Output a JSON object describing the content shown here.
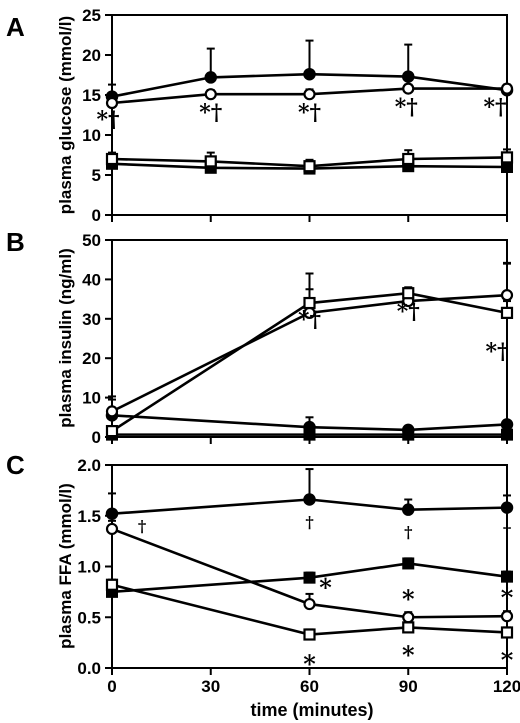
{
  "chart_data": [
    {
      "type": "line",
      "panel": "A",
      "ylabel": "plasma glucose (mmol/l)",
      "xlabel": "",
      "xlim": [
        0,
        120
      ],
      "ylim": [
        0,
        25
      ],
      "yticks": [
        0,
        5,
        10,
        15,
        20,
        25
      ],
      "x": [
        0,
        30,
        60,
        90,
        120
      ],
      "series": [
        {
          "marker": "filled-circle",
          "values": [
            14.8,
            17.2,
            17.6,
            17.3,
            15.6
          ],
          "errors": [
            1.5,
            3.6,
            4.2,
            4.0,
            0.5
          ]
        },
        {
          "marker": "open-circle",
          "values": [
            14.0,
            15.1,
            15.1,
            15.8,
            15.8
          ],
          "errors": [
            0.5,
            0.5,
            0.6,
            0.5,
            0.5
          ]
        },
        {
          "marker": "filled-square",
          "values": [
            6.4,
            5.9,
            5.8,
            6.1,
            6.0
          ],
          "errors": [
            1.0,
            1.3,
            1.0,
            1.2,
            1.1
          ]
        },
        {
          "marker": "open-square",
          "values": [
            7.0,
            6.7,
            6.1,
            7.0,
            7.2
          ],
          "errors": [
            0.8,
            1.1,
            0.8,
            1.1,
            1.0
          ]
        }
      ],
      "annotations": [
        {
          "x": 0,
          "text": "*†"
        },
        {
          "x": 30,
          "text": "*†"
        },
        {
          "x": 60,
          "text": "*†"
        },
        {
          "x": 90,
          "text": "*†"
        },
        {
          "x": 120,
          "text": "*†"
        }
      ]
    },
    {
      "type": "line",
      "panel": "B",
      "ylabel": "plasma insulin (ng/ml)",
      "xlabel": "",
      "xlim": [
        0,
        120
      ],
      "ylim": [
        0,
        50
      ],
      "yticks": [
        0,
        10,
        20,
        30,
        40,
        50
      ],
      "x": [
        0,
        60,
        90,
        120
      ],
      "series": [
        {
          "marker": "filled-circle",
          "values": [
            5.5,
            2.5,
            1.8,
            3.2
          ],
          "errors": [
            4.8,
            2.5,
            0.8,
            41.0
          ]
        },
        {
          "marker": "open-circle",
          "values": [
            6.5,
            31.5,
            34.5,
            36.0
          ],
          "errors": [
            3.0,
            6.0,
            1.5,
            8.0
          ]
        },
        {
          "marker": "filled-square",
          "values": [
            0.6,
            0.6,
            0.6,
            0.6
          ],
          "errors": [
            0.3,
            0.3,
            0.3,
            0.3
          ]
        },
        {
          "marker": "open-square",
          "values": [
            1.5,
            34.0,
            36.5,
            31.5
          ],
          "errors": [
            1.0,
            7.5,
            1.5,
            3.0
          ]
        }
      ],
      "annotations": [
        {
          "x": 60,
          "text": "*†"
        },
        {
          "x": 90,
          "text": "*†"
        },
        {
          "x": 120,
          "text": "*†"
        }
      ]
    },
    {
      "type": "line",
      "panel": "C",
      "ylabel": "plasma FFA (mmol/l)",
      "xlabel": "time (minutes)",
      "xlim": [
        0,
        120
      ],
      "ylim": [
        0,
        2.0
      ],
      "yticks": [
        "0.0",
        "0.5",
        "1.0",
        "1.5",
        "2.0"
      ],
      "xticks": [
        "0",
        "30",
        "60",
        "90",
        "120"
      ],
      "x": [
        0,
        60,
        90,
        120
      ],
      "series": [
        {
          "marker": "filled-circle",
          "values": [
            1.52,
            1.66,
            1.56,
            1.58
          ],
          "errors": [
            0.2,
            0.3,
            0.1,
            0.12
          ]
        },
        {
          "marker": "open-circle",
          "values": [
            1.37,
            0.63,
            0.5,
            0.51
          ],
          "errors": [
            0.08,
            0.1,
            0.05,
            0.05
          ]
        },
        {
          "marker": "filled-square",
          "values": [
            0.75,
            0.89,
            1.03,
            0.9
          ],
          "errors": [
            0.05,
            0.05,
            0.05,
            0.05
          ]
        },
        {
          "marker": "open-square",
          "values": [
            0.82,
            0.33,
            0.4,
            0.35
          ],
          "errors": [
            0.05,
            0.05,
            0.05,
            0.05
          ]
        }
      ],
      "annotations": [
        {
          "x": 0,
          "text": "†"
        },
        {
          "x": 60,
          "text": "†"
        },
        {
          "x": 90,
          "text": "†"
        },
        {
          "x": 120,
          "text": "†"
        },
        {
          "x": 60,
          "text": "*"
        },
        {
          "x": 90,
          "text": "*"
        },
        {
          "x": 120,
          "text": "*"
        },
        {
          "x": 60,
          "text": "*"
        },
        {
          "x": 90,
          "text": "*"
        },
        {
          "x": 120,
          "text": "*"
        }
      ]
    }
  ]
}
